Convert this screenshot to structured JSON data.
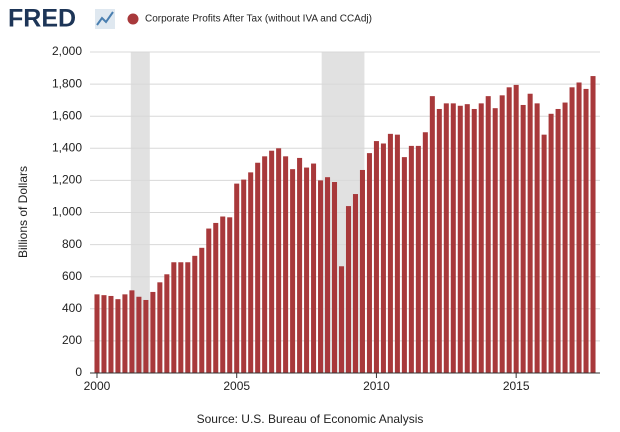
{
  "logo": "FRED",
  "chart_data": {
    "type": "bar",
    "y_label": "Billions of Dollars",
    "source": "Source: U.S. Bureau of Economic Analysis",
    "series": [
      {
        "name": "Corporate Profits After Tax (without IVA and CCAdj)",
        "color": "#a8393b",
        "values": [
          490,
          485,
          480,
          460,
          490,
          515,
          475,
          455,
          505,
          565,
          615,
          690,
          690,
          690,
          730,
          780,
          900,
          935,
          975,
          970,
          1180,
          1205,
          1250,
          1310,
          1350,
          1385,
          1400,
          1350,
          1270,
          1340,
          1280,
          1305,
          1200,
          1220,
          1190,
          665,
          1040,
          1115,
          1265,
          1370,
          1445,
          1430,
          1490,
          1485,
          1345,
          1415,
          1415,
          1500,
          1725,
          1645,
          1680,
          1680,
          1665,
          1675,
          1645,
          1680,
          1725,
          1650,
          1730,
          1780,
          1795,
          1670,
          1740,
          1680,
          1485,
          1615,
          1645,
          1685,
          1780,
          1810,
          1770,
          1850
        ]
      }
    ],
    "x": [
      2000,
      2000.25,
      2000.5,
      2000.75,
      2001,
      2001.25,
      2001.5,
      2001.75,
      2002,
      2002.25,
      2002.5,
      2002.75,
      2003,
      2003.25,
      2003.5,
      2003.75,
      2004,
      2004.25,
      2004.5,
      2004.75,
      2005,
      2005.25,
      2005.5,
      2005.75,
      2006,
      2006.25,
      2006.5,
      2006.75,
      2007,
      2007.25,
      2007.5,
      2007.75,
      2008,
      2008.25,
      2008.5,
      2008.75,
      2009,
      2009.25,
      2009.5,
      2009.75,
      2010,
      2010.25,
      2010.5,
      2010.75,
      2011,
      2011.25,
      2011.5,
      2011.75,
      2012,
      2012.25,
      2012.5,
      2012.75,
      2013,
      2013.25,
      2013.5,
      2013.75,
      2014,
      2014.25,
      2014.5,
      2014.75,
      2015,
      2015.25,
      2015.5,
      2015.75,
      2016,
      2016.25,
      2016.5,
      2016.75,
      2017,
      2017.25,
      2017.5,
      2017.75
    ],
    "shaded_ranges": [
      [
        2001.21,
        2001.89
      ],
      [
        2008.04,
        2009.57
      ]
    ],
    "shade_color": "#e1e1e1",
    "xlim": [
      1999.75,
      2018
    ],
    "xticks": [
      2000,
      2005,
      2010,
      2015
    ],
    "ylim": [
      0,
      2000
    ],
    "yticks": [
      0,
      200,
      400,
      600,
      800,
      {
        "value": 1000,
        "label": "1,000"
      },
      {
        "value": 1200,
        "label": "1,200"
      },
      {
        "value": 1400,
        "label": "1,400"
      },
      {
        "value": 1600,
        "label": "1,600"
      },
      {
        "value": 1800,
        "label": "1,800"
      },
      {
        "value": 2000,
        "label": "2,000"
      }
    ],
    "grid": true
  }
}
